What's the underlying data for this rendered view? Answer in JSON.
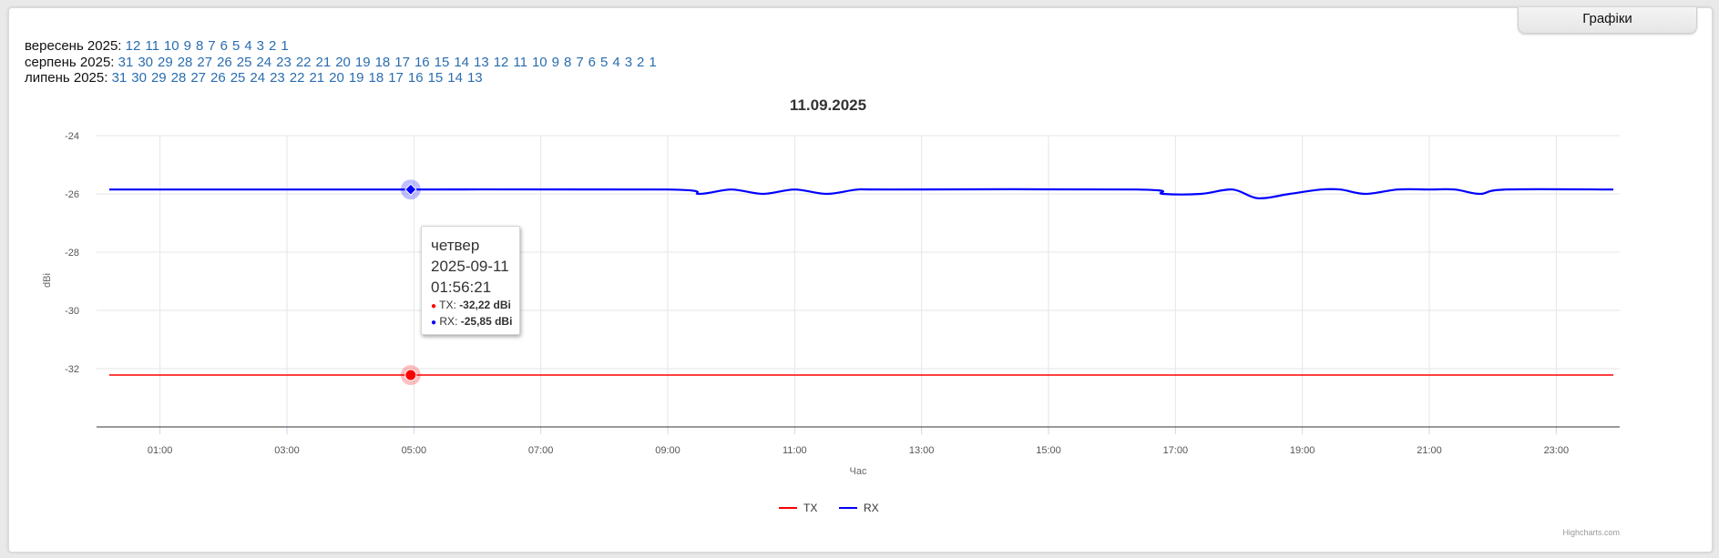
{
  "graphs_tab": {
    "label": "Графіки"
  },
  "date_rows": [
    {
      "label": "вересень 2025:",
      "days": [
        "12",
        "11",
        "10",
        "9",
        "8",
        "7",
        "6",
        "5",
        "4",
        "3",
        "2",
        "1"
      ]
    },
    {
      "label": "серпень 2025:",
      "days": [
        "31",
        "30",
        "29",
        "28",
        "27",
        "26",
        "25",
        "24",
        "23",
        "22",
        "21",
        "20",
        "19",
        "18",
        "17",
        "16",
        "15",
        "14",
        "13",
        "12",
        "11",
        "10",
        "9",
        "8",
        "7",
        "6",
        "5",
        "4",
        "3",
        "2",
        "1"
      ]
    },
    {
      "label": "липень 2025:",
      "days": [
        "31",
        "30",
        "29",
        "28",
        "27",
        "26",
        "25",
        "24",
        "23",
        "22",
        "21",
        "20",
        "19",
        "18",
        "17",
        "16",
        "15",
        "14",
        "13"
      ]
    }
  ],
  "tooltip": {
    "day": "четвер",
    "date": "2025-09-11",
    "time": "01:56:21",
    "rows": [
      {
        "name": "TX",
        "value": "-32,22 dBi",
        "color": "#ff0000"
      },
      {
        "name": "RX",
        "value": "-25,85 dBi",
        "color": "#0000ff"
      }
    ]
  },
  "credits": "Highcharts.com",
  "chart_data": {
    "type": "line",
    "title": "11.09.2025",
    "xlabel": "Час",
    "ylabel": "dBi",
    "xlim": [
      0,
      24
    ],
    "ylim": [
      -34,
      -24
    ],
    "x_tick_values": [
      1,
      3,
      5,
      7,
      9,
      11,
      13,
      15,
      17,
      19,
      21,
      23
    ],
    "x_tick_labels": [
      "01:00",
      "03:00",
      "05:00",
      "07:00",
      "09:00",
      "11:00",
      "13:00",
      "15:00",
      "17:00",
      "19:00",
      "21:00",
      "23:00"
    ],
    "y_ticks": [
      -24,
      -26,
      -28,
      -30,
      -32
    ],
    "grid": true,
    "legend": "bottom-center",
    "hover_x": 4.95,
    "series": [
      {
        "name": "TX",
        "color": "#ff0000",
        "x": [
          0.2,
          4.95,
          23.9
        ],
        "values": [
          -32.22,
          -32.22,
          -32.22
        ]
      },
      {
        "name": "RX",
        "color": "#0000ff",
        "x": [
          0.2,
          4.95,
          9.0,
          9.5,
          10.0,
          10.5,
          11.0,
          11.5,
          12.0,
          12.5,
          16.4,
          16.8,
          17.4,
          17.9,
          18.3,
          18.8,
          19.3,
          19.6,
          20.0,
          20.5,
          21.0,
          21.4,
          21.8,
          22.2,
          23.9
        ],
        "values": [
          -25.85,
          -25.85,
          -25.85,
          -26.0,
          -25.85,
          -26.0,
          -25.85,
          -26.0,
          -25.85,
          -25.85,
          -25.85,
          -26.0,
          -26.0,
          -25.85,
          -26.15,
          -26.0,
          -25.85,
          -25.85,
          -26.0,
          -25.85,
          -25.85,
          -25.85,
          -26.0,
          -25.85,
          -25.85
        ]
      }
    ]
  }
}
